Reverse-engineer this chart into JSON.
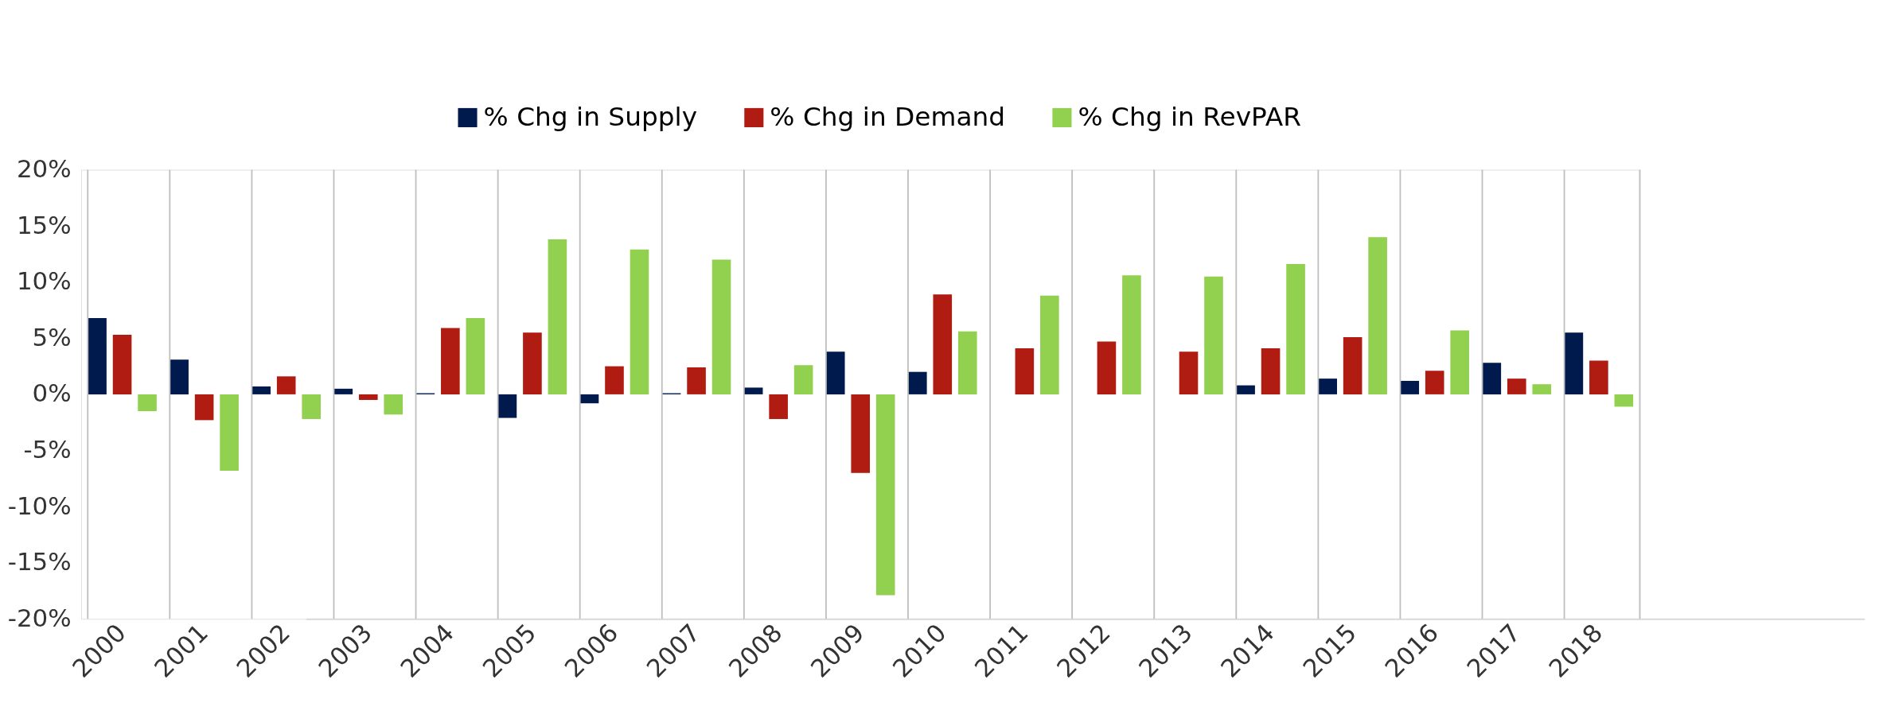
{
  "chart_data": {
    "type": "bar",
    "categories": [
      "2000",
      "2001",
      "2002",
      "2003",
      "2004",
      "2005",
      "2006",
      "2007",
      "2008",
      "2009",
      "2010",
      "2011",
      "2012",
      "2013",
      "2014",
      "2015",
      "2016",
      "2017",
      "2018"
    ],
    "series": [
      {
        "name": "% Chg in Supply",
        "color": "#001a4d",
        "values": [
          6.8,
          3.1,
          0.7,
          0.5,
          0.1,
          -2.1,
          -0.8,
          0.1,
          0.6,
          3.8,
          2.0,
          0,
          0,
          0,
          0.8,
          1.4,
          1.2,
          2.8,
          5.5
        ]
      },
      {
        "name": "% Chg in Demand",
        "color": "#b01c12",
        "values": [
          5.3,
          -2.3,
          1.6,
          -0.5,
          5.9,
          5.5,
          2.5,
          2.4,
          -2.2,
          -7.0,
          8.9,
          4.1,
          4.7,
          3.8,
          4.1,
          5.1,
          2.1,
          1.4,
          3.0
        ]
      },
      {
        "name": "% Chg in RevPAR",
        "color": "#92d050",
        "values": [
          -1.5,
          -6.8,
          -2.2,
          -1.8,
          6.8,
          13.8,
          12.9,
          12.0,
          2.6,
          -17.9,
          5.6,
          8.8,
          10.6,
          10.5,
          11.6,
          14.0,
          5.7,
          0.9,
          -1.1
        ]
      }
    ],
    "ylim": [
      -20,
      20
    ],
    "yticks": [
      {
        "value": -20,
        "label": "-20%"
      },
      {
        "value": -15,
        "label": "-15%"
      },
      {
        "value": -10,
        "label": "-10%"
      },
      {
        "value": -5,
        "label": "-5%"
      },
      {
        "value": 0,
        "label": "0%"
      },
      {
        "value": 5,
        "label": "5%"
      },
      {
        "value": 10,
        "label": "10%"
      },
      {
        "value": 15,
        "label": "15%"
      },
      {
        "value": 20,
        "label": "20%"
      }
    ],
    "grid": "x",
    "legend": "top"
  }
}
